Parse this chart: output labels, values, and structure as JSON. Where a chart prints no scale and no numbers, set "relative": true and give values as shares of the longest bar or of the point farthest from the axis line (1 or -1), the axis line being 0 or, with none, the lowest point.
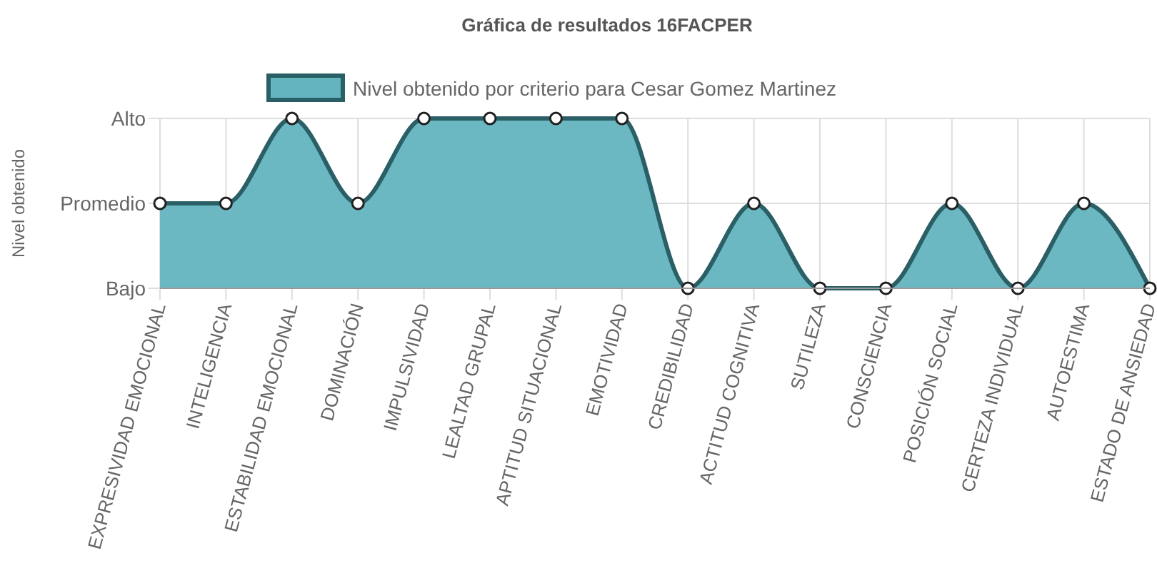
{
  "chart_data": {
    "type": "area",
    "title": "Gráfica de resultados 16FACPER",
    "ylabel": "Nivel obtenido",
    "categories": [
      "EXPRESIVIDAD EMOCIONAL",
      "INTELIGENCIA",
      "ESTABILIDAD EMOCIONAL",
      "DOMINACIÓN",
      "IMPULSIVIDAD",
      "LEALTAD GRUPAL",
      "APTITUD SITUACIONAL",
      "EMOTIVIDAD",
      "CREDIBILIDAD",
      "ACTITUD COGNITIVA",
      "SUTILEZA",
      "CONSCIENCIA",
      "POSICIÓN SOCIAL",
      "CERTEZA INDIVIDUAL",
      "AUTOESTIMA",
      "ESTADO DE ANSIEDAD"
    ],
    "y_categories": [
      "Alto",
      "Promedio",
      "Bajo"
    ],
    "relative": true,
    "series": [
      {
        "name": "Nivel obtenido por criterio para Cesar Gomez Martinez",
        "color": "#2a5f66",
        "values": [
          0.5,
          0.5,
          1,
          0.5,
          1,
          1,
          1,
          1,
          0,
          0.5,
          0,
          0,
          0.5,
          0,
          0.5,
          0
        ]
      }
    ],
    "grid": true,
    "legend": "top",
    "marker": "circle"
  }
}
